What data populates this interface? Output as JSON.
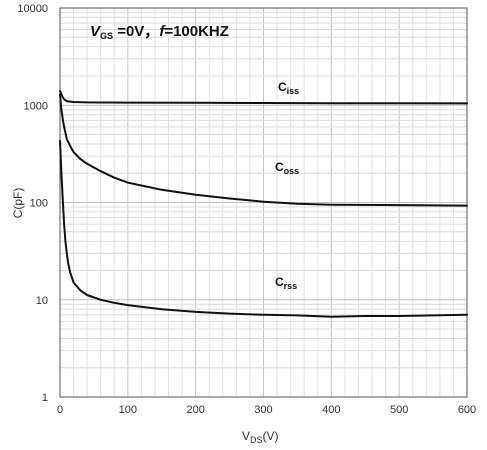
{
  "chart_data": {
    "type": "line",
    "title": "",
    "annotation": {
      "v": "V",
      "v_sub": "GS",
      "rest": " =0V，",
      "f": "f",
      "f_rest": "=100KHZ"
    },
    "xlabel": {
      "main": "V",
      "sub": "DS",
      "rest": "(V)"
    },
    "ylabel": "C(pF)",
    "x_scale": "linear",
    "y_scale": "log",
    "xlim": [
      0,
      600
    ],
    "ylim": [
      1,
      10000
    ],
    "x_ticks": [
      "0",
      "100",
      "200",
      "300",
      "400",
      "500",
      "600"
    ],
    "y_ticks": [
      "1",
      "10",
      "100",
      "1000",
      "10000"
    ],
    "grid": true,
    "legend": "none",
    "series": [
      {
        "label_main": "C",
        "label_sub": "iss",
        "x": [
          0,
          3,
          6,
          10,
          20,
          40,
          100,
          200,
          300,
          400,
          500,
          600
        ],
        "y": [
          1400,
          1250,
          1150,
          1100,
          1080,
          1070,
          1065,
          1060,
          1055,
          1050,
          1048,
          1045
        ]
      },
      {
        "label_main": "C",
        "label_sub": "oss",
        "x": [
          0,
          2,
          5,
          10,
          15,
          20,
          30,
          40,
          60,
          80,
          100,
          150,
          200,
          250,
          300,
          350,
          400,
          500,
          600
        ],
        "y": [
          1300,
          900,
          650,
          450,
          380,
          330,
          280,
          250,
          210,
          180,
          160,
          135,
          120,
          110,
          102,
          97,
          95,
          94,
          93
        ]
      },
      {
        "label_main": "C",
        "label_sub": "rss",
        "x": [
          0,
          2,
          4,
          6,
          8,
          10,
          12,
          15,
          20,
          30,
          40,
          60,
          80,
          100,
          150,
          200,
          250,
          300,
          350,
          400,
          450,
          500,
          550,
          600
        ],
        "y": [
          430,
          200,
          110,
          60,
          40,
          30,
          24,
          19,
          15,
          12.5,
          11.2,
          10,
          9.3,
          8.8,
          8.0,
          7.5,
          7.2,
          7.0,
          6.9,
          6.7,
          6.8,
          6.8,
          6.9,
          7.0
        ]
      }
    ]
  }
}
